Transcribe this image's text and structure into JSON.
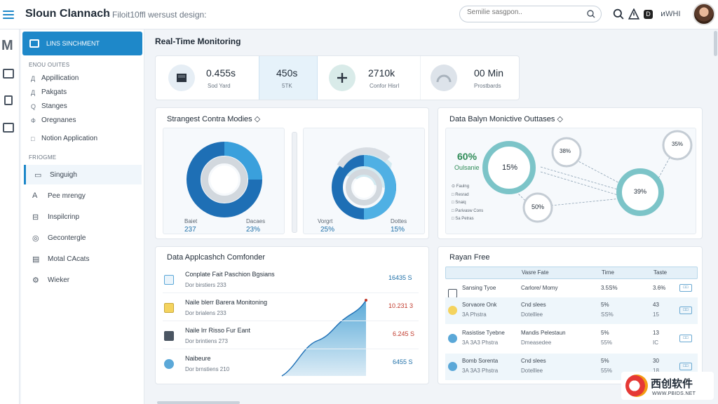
{
  "header": {
    "title": "Sloun Clannach",
    "subtitle": "– Filoit10ffl wersust design:",
    "search_placeholder": "Semilie sasgpon..",
    "right_text": "ͷWHI",
    "icons": [
      "search-icon",
      "alert-icon",
      "dark-mode-icon"
    ]
  },
  "sidebar": {
    "primary": "LINS SINCHMENT",
    "section1": "ENOU OUITES",
    "items1": [
      {
        "icon": "Д",
        "label": "Appillication"
      },
      {
        "icon": "Д",
        "label": "Pakgats"
      },
      {
        "icon": "Q",
        "label": "Stanges"
      },
      {
        "icon": "Ф",
        "label": "Oregnanes"
      },
      {
        "icon": "□",
        "label": "Notion Application"
      }
    ],
    "section2": "FRIOGME",
    "items2": [
      {
        "icon": "▭",
        "label": "Singuigh"
      },
      {
        "icon": "А",
        "label": "Pee mrengy"
      },
      {
        "icon": "⊟",
        "label": "Inspilcrinp"
      },
      {
        "icon": "◎",
        "label": "Gecontergle"
      },
      {
        "icon": "▤",
        "label": "Motal CAcats"
      },
      {
        "icon": "⚙",
        "label": "Wieker"
      }
    ]
  },
  "main": {
    "title": "Real-Time Monitoring",
    "stats": [
      {
        "value": "0.455s",
        "label": "Sod Yard",
        "icon": "server-icon"
      },
      {
        "value": "450s",
        "label": "5TK",
        "icon": ""
      },
      {
        "value": "2710k",
        "label": "Confor Hisrl",
        "icon": "plus-icon"
      },
      {
        "value": "00 Min",
        "label": "Prostbards",
        "icon": "gauge-icon"
      }
    ],
    "donut_panel": {
      "title": "Strangest Contra Modies ◇",
      "left_label": "Baiet",
      "left_value": "237",
      "mid_label": "Dacaes",
      "mid_value": "23%",
      "right_label": "Vorgrt",
      "right_value": "25%",
      "far_label": "Dottes",
      "far_value": "15%"
    },
    "network_panel": {
      "title": "Data Balyn Monictive Outtases ◇",
      "big_pct": "60%",
      "big_label": "Oulsanie",
      "nodes": [
        "15%",
        "38%",
        "39%",
        "50%",
        "35%"
      ],
      "legend": [
        "Faulng",
        "Resrad",
        "Snaiq",
        "Parivasw Cons",
        "Sa Petras"
      ]
    },
    "app_panel": {
      "title": "Data Applcashch Comfonder",
      "rows": [
        {
          "title": "Conplate Fait Paschion Bgsians",
          "sub": "Dor birstiers 233",
          "value": "16435 S",
          "color": "#1e6fa8",
          "icon_color": "#5ba8d8"
        },
        {
          "title": "Naile blerr Barera Monitoning",
          "sub": "Dor brialens 233",
          "value": "10.231 3",
          "color": "#c0392b",
          "icon_color": "#f4d35e"
        },
        {
          "title": "Naile lrr Risso Fur Eant",
          "sub": "Dor brintiens 273",
          "value": "6.245 S",
          "color": "#c0392b",
          "icon_color": "#4a5562"
        },
        {
          "title": "Naibeure",
          "sub": "Dor brnstiens 210",
          "value": "6455 S",
          "color": "#1e6fa8",
          "icon_color": "#5ba8d8"
        }
      ]
    },
    "table_panel": {
      "title": "Rayan Free",
      "headers": [
        "Vasre Fate",
        "Tirne",
        "Taste"
      ],
      "rows": [
        {
          "name": "Sansing Tyoe",
          "a": "Carlore/ Momy",
          "a2": "",
          "b": "3.5S%",
          "b2": "",
          "c": "3.6%",
          "c2": "",
          "icon_color": "#4a5562"
        },
        {
          "name": "Sorvaore Onk",
          "sub": "3A Phstra",
          "a": "Cnd slees",
          "a2": "Dotelllee",
          "b": "5%",
          "b2": "SS%",
          "c": "43",
          "c2": "15",
          "icon_color": "#f4d35e"
        },
        {
          "name": "Rasistise Tyebne",
          "sub": "3A 3A3 Phstra",
          "a": "Mandis Pelestaun",
          "a2": "Dmeasedee",
          "b": "5%",
          "b2": "55%",
          "c": "13",
          "c2": "IC",
          "icon_color": "#5ba8d8"
        },
        {
          "name": "Bomb Sorenta",
          "sub": "3A 3A3 Phstra",
          "a": "Cnd slees",
          "a2": "Dotelllee",
          "b": "5%",
          "b2": "55%",
          "c": "30",
          "c2": "18",
          "icon_color": "#5ba8d8"
        }
      ]
    }
  },
  "watermark": {
    "title": "西创软件",
    "sub": "WWW.PBIDS.NET"
  },
  "colors": {
    "accent": "#1e88c9",
    "teal": "#7cc4c8",
    "light_blue": "#e4f0f8"
  }
}
